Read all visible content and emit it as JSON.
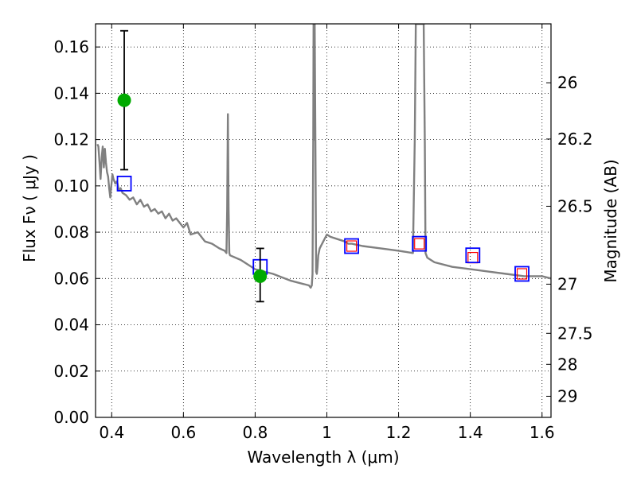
{
  "chart_data": {
    "type": "scatter",
    "xlabel": "Wavelength  λ (μm)",
    "ylabel": "Flux  Fν ( μJy )",
    "y2label": "Magnitude (AB)",
    "xlim": [
      0.355,
      1.625
    ],
    "ylim": [
      0.0,
      0.17
    ],
    "grid": true,
    "x_ticks": [
      {
        "value": 0.4,
        "label": "0.4"
      },
      {
        "value": 0.6,
        "label": "0.6"
      },
      {
        "value": 0.8,
        "label": "0.8"
      },
      {
        "value": 1.0,
        "label": "1"
      },
      {
        "value": 1.2,
        "label": "1.2"
      },
      {
        "value": 1.4,
        "label": "1.4"
      },
      {
        "value": 1.6,
        "label": "1.6"
      }
    ],
    "y_ticks": [
      {
        "value": 0.0,
        "label": "0.00"
      },
      {
        "value": 0.02,
        "label": "0.02"
      },
      {
        "value": 0.04,
        "label": "0.04"
      },
      {
        "value": 0.06,
        "label": "0.06"
      },
      {
        "value": 0.08,
        "label": "0.08"
      },
      {
        "value": 0.1,
        "label": "0.10"
      },
      {
        "value": 0.12,
        "label": "0.12"
      },
      {
        "value": 0.14,
        "label": "0.14"
      },
      {
        "value": 0.16,
        "label": "0.16"
      }
    ],
    "y2_ticks": [
      {
        "value": 26.0,
        "label": "26"
      },
      {
        "value": 26.2,
        "label": "26.2"
      },
      {
        "value": 26.5,
        "label": "26.5"
      },
      {
        "value": 27.0,
        "label": "27"
      },
      {
        "value": 27.5,
        "label": "27.5"
      },
      {
        "value": 28.0,
        "label": "28"
      },
      {
        "value": 29.0,
        "label": "29"
      }
    ],
    "y2_zero_point_flux": 3631000000,
    "sed_model": {
      "color": "#808080",
      "x": [
        0.36,
        0.363,
        0.366,
        0.369,
        0.372,
        0.375,
        0.378,
        0.381,
        0.384,
        0.387,
        0.39,
        0.393,
        0.396,
        0.399,
        0.402,
        0.405,
        0.41,
        0.415,
        0.42,
        0.425,
        0.43,
        0.44,
        0.45,
        0.46,
        0.47,
        0.48,
        0.49,
        0.5,
        0.51,
        0.52,
        0.53,
        0.54,
        0.55,
        0.56,
        0.57,
        0.58,
        0.59,
        0.6,
        0.61,
        0.62,
        0.64,
        0.66,
        0.68,
        0.7,
        0.715,
        0.72,
        0.722,
        0.724,
        0.726,
        0.728,
        0.73,
        0.76,
        0.8,
        0.85,
        0.9,
        0.95,
        0.955,
        0.958,
        0.96,
        0.962,
        0.963,
        0.964,
        0.966,
        0.968,
        0.97,
        0.972,
        0.974,
        0.976,
        0.98,
        0.99,
        1.0,
        1.01,
        1.03,
        1.05,
        1.06,
        1.07,
        1.1,
        1.15,
        1.2,
        1.24,
        1.245,
        1.248,
        1.25,
        1.252,
        1.255,
        1.26,
        1.265,
        1.27,
        1.273,
        1.275,
        1.28,
        1.3,
        1.35,
        1.4,
        1.45,
        1.5,
        1.55,
        1.6,
        1.625
      ],
      "y": [
        0.118,
        0.117,
        0.11,
        0.103,
        0.112,
        0.117,
        0.108,
        0.116,
        0.11,
        0.106,
        0.104,
        0.099,
        0.095,
        0.1,
        0.105,
        0.103,
        0.101,
        0.102,
        0.098,
        0.099,
        0.097,
        0.096,
        0.094,
        0.095,
        0.092,
        0.094,
        0.091,
        0.092,
        0.089,
        0.09,
        0.088,
        0.089,
        0.086,
        0.088,
        0.085,
        0.086,
        0.084,
        0.082,
        0.084,
        0.079,
        0.08,
        0.076,
        0.075,
        0.073,
        0.072,
        0.071,
        0.09,
        0.131,
        0.09,
        0.071,
        0.07,
        0.068,
        0.064,
        0.062,
        0.059,
        0.057,
        0.056,
        0.057,
        0.062,
        0.12,
        0.17,
        0.12,
        0.17,
        0.12,
        0.063,
        0.062,
        0.065,
        0.07,
        0.073,
        0.076,
        0.079,
        0.078,
        0.077,
        0.076,
        0.075,
        0.075,
        0.074,
        0.073,
        0.072,
        0.071,
        0.12,
        0.17,
        0.17,
        0.17,
        0.17,
        0.17,
        0.17,
        0.17,
        0.12,
        0.071,
        0.069,
        0.067,
        0.065,
        0.064,
        0.063,
        0.062,
        0.061,
        0.061,
        0.06
      ]
    },
    "observed": {
      "color": "#00aa00",
      "points": [
        {
          "x": 0.435,
          "y": 0.137,
          "err_low": 0.107,
          "err_high": 0.167
        },
        {
          "x": 0.814,
          "y": 0.061,
          "err_low": 0.05,
          "err_high": 0.073
        }
      ]
    },
    "model_photometry": {
      "color": "#0000ff",
      "points": [
        {
          "x": 0.435,
          "y": 0.101
        },
        {
          "x": 0.814,
          "y": 0.065
        },
        {
          "x": 1.069,
          "y": 0.074
        },
        {
          "x": 1.258,
          "y": 0.075
        },
        {
          "x": 1.407,
          "y": 0.07
        },
        {
          "x": 1.544,
          "y": 0.062
        }
      ]
    },
    "upper_limits": {
      "color": "#ff0000",
      "points": [
        {
          "x": 1.069,
          "y": 0.074
        },
        {
          "x": 1.258,
          "y": 0.075
        },
        {
          "x": 1.407,
          "y": 0.069
        },
        {
          "x": 1.544,
          "y": 0.062
        }
      ]
    }
  }
}
